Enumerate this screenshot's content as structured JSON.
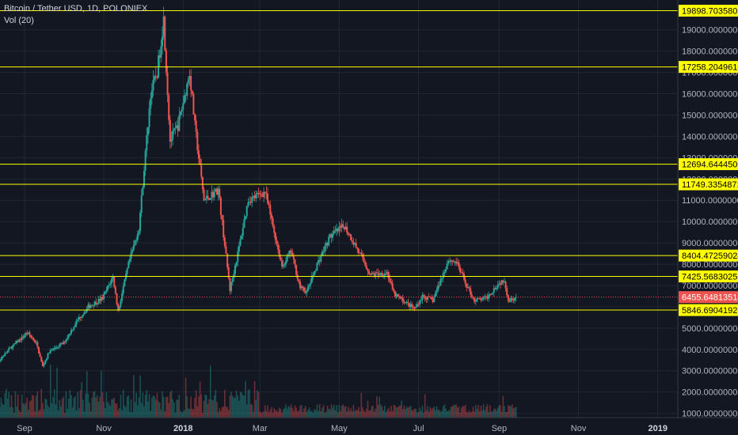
{
  "header": {
    "symbol_line": "Bitcoin / Tether USD, 1D, POLONIEX",
    "volume_label": "Vol (20)"
  },
  "colors": {
    "background": "#131722",
    "grid": "#232733",
    "axis_text": "#b2b5be",
    "up": "#26a69a",
    "down": "#ef5350",
    "level_line": "#ffff00",
    "level_label_bg": "#ffff00",
    "level_label_text": "#000000",
    "last_price_bg": "#ef5350",
    "last_price_text": "#ffffff"
  },
  "chart_data": {
    "type": "candlestick",
    "title": "Bitcoin / Tether USD, 1D, POLONIEX",
    "x_range": [
      "2017-08-01",
      "2019-01-31"
    ],
    "ylim": [
      800,
      20400
    ],
    "y_ticks": [
      "1000.00000000",
      "2000.00000000",
      "3000.00000000",
      "4000.00000000",
      "5000.00000000",
      "6000.00000000",
      "7000.00000000",
      "8000.00000000",
      "9000.00000000",
      "10000.00000000",
      "11000.00000000",
      "12000.00000000",
      "13000.00000000",
      "14000.00000000",
      "15000.00000000",
      "16000.00000000",
      "17000.00000000",
      "18000.00000000",
      "19000.00000000"
    ],
    "x_ticks": [
      {
        "label": "Sep",
        "date": "2017-09-01"
      },
      {
        "label": "Nov",
        "date": "2017-11-01"
      },
      {
        "label": "2018",
        "date": "2018-01-01",
        "bold": true
      },
      {
        "label": "Mar",
        "date": "2018-03-01"
      },
      {
        "label": "May",
        "date": "2018-05-01"
      },
      {
        "label": "Jul",
        "date": "2018-07-01"
      },
      {
        "label": "Sep",
        "date": "2018-09-01"
      },
      {
        "label": "Nov",
        "date": "2018-11-01"
      },
      {
        "label": "2019",
        "date": "2019-01-01",
        "bold": true
      }
    ],
    "price_path": [
      [
        "2017-08-01",
        2700
      ],
      [
        "2017-08-10",
        3300
      ],
      [
        "2017-08-20",
        4000
      ],
      [
        "2017-08-31",
        4600
      ],
      [
        "2017-09-03",
        4800
      ],
      [
        "2017-09-10",
        4300
      ],
      [
        "2017-09-15",
        3200
      ],
      [
        "2017-09-20",
        3900
      ],
      [
        "2017-10-01",
        4300
      ],
      [
        "2017-10-12",
        5400
      ],
      [
        "2017-10-20",
        6000
      ],
      [
        "2017-10-31",
        6400
      ],
      [
        "2017-11-08",
        7400
      ],
      [
        "2017-11-12",
        5800
      ],
      [
        "2017-11-20",
        8000
      ],
      [
        "2017-11-28",
        9700
      ],
      [
        "2017-12-07",
        16000
      ],
      [
        "2017-12-12",
        17000
      ],
      [
        "2017-12-17",
        19500
      ],
      [
        "2017-12-22",
        13800
      ],
      [
        "2017-12-28",
        14500
      ],
      [
        "2018-01-06",
        17000
      ],
      [
        "2018-01-10",
        14500
      ],
      [
        "2018-01-17",
        11000
      ],
      [
        "2018-01-28",
        11500
      ],
      [
        "2018-02-06",
        6800
      ],
      [
        "2018-02-12",
        8500
      ],
      [
        "2018-02-20",
        11000
      ],
      [
        "2018-03-05",
        11400
      ],
      [
        "2018-03-18",
        7900
      ],
      [
        "2018-03-25",
        8600
      ],
      [
        "2018-04-01",
        6900
      ],
      [
        "2018-04-06",
        6700
      ],
      [
        "2018-04-14",
        8000
      ],
      [
        "2018-04-24",
        9300
      ],
      [
        "2018-05-05",
        9800
      ],
      [
        "2018-05-15",
        8700
      ],
      [
        "2018-05-25",
        7500
      ],
      [
        "2018-06-07",
        7600
      ],
      [
        "2018-06-12",
        6600
      ],
      [
        "2018-06-28",
        5900
      ],
      [
        "2018-07-04",
        6500
      ],
      [
        "2018-07-12",
        6300
      ],
      [
        "2018-07-24",
        8200
      ],
      [
        "2018-07-30",
        8100
      ],
      [
        "2018-08-07",
        7000
      ],
      [
        "2018-08-13",
        6300
      ],
      [
        "2018-08-22",
        6400
      ],
      [
        "2018-08-30",
        7000
      ],
      [
        "2018-09-05",
        7300
      ],
      [
        "2018-09-08",
        6300
      ],
      [
        "2018-09-14",
        6455
      ]
    ],
    "last_date": "2018-09-14",
    "horizontal_levels": [
      19898.70358075,
      17258.20496107,
      12694.64445009,
      11749.3354871,
      8404.47259024,
      7425.56830258,
      5846.69041927
    ],
    "level_labels": [
      "19898.70358075",
      "17258.20496107",
      "12694.64445009",
      "11749.33548710",
      "8404.47259024",
      "7425.56830258",
      "5846.69041927"
    ],
    "last_price": 6455.64813514,
    "last_price_label": "6455.64813514",
    "volume_series": "Vol (20)"
  }
}
